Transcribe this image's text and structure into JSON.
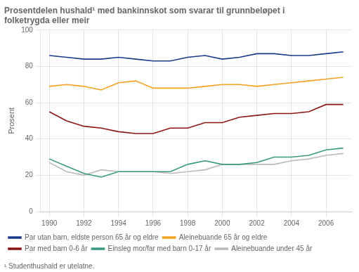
{
  "chart_data": {
    "type": "line",
    "title": [
      "Prosentdelen hushald¹ med bankinnskot som svarar til grunnbeløpet i",
      "folketrygda eller meir"
    ],
    "ylabel": "Prosent",
    "annotations": [
      "¹ Studenthushald er utelatne."
    ],
    "x": [
      1990,
      1991,
      1992,
      1993,
      1994,
      1995,
      1996,
      1997,
      1998,
      1999,
      2000,
      2001,
      2002,
      2003,
      2004,
      2005,
      2006,
      2007
    ],
    "series": [
      {
        "name": "Par utan barn, eldste person 65 år og eldre",
        "color": "#1a3a8c",
        "values": [
          86,
          85,
          84,
          84,
          85,
          84,
          83,
          83,
          85,
          86,
          84,
          85,
          87,
          87,
          86,
          86,
          87,
          88
        ]
      },
      {
        "name": "Aleinebuande 65 år og eldre",
        "color": "#f5a020",
        "values": [
          69,
          70,
          69,
          67,
          71,
          72,
          68,
          68,
          68,
          69,
          70,
          70,
          69,
          70,
          71,
          72,
          73,
          74
        ]
      },
      {
        "name": "Par med barn 0-6 år",
        "color": "#8b1515",
        "values": [
          55,
          50,
          47,
          46,
          44,
          43,
          43,
          46,
          46,
          49,
          49,
          52,
          53,
          54,
          54,
          55,
          59,
          59
        ]
      },
      {
        "name": "Einsleg mor/far med barn 0-17 år",
        "color": "#3a9980",
        "values": [
          29,
          25,
          21,
          19,
          22,
          22,
          22,
          22,
          26,
          28,
          26,
          26,
          27,
          30,
          30,
          31,
          34,
          35
        ]
      },
      {
        "name": "Aleinebuande under 45 år",
        "color": "#bbbbbb",
        "values": [
          27,
          22,
          20,
          23,
          22,
          22,
          22,
          21,
          22,
          23,
          26,
          26,
          26,
          26,
          28,
          29,
          31,
          32
        ]
      }
    ],
    "xlim": [
      1989.5,
      2007.5
    ],
    "ylim": [
      0,
      100
    ],
    "xticks": [
      1990,
      1992,
      1994,
      1996,
      1998,
      2000,
      2002,
      2004,
      2006
    ],
    "yticks": [
      0,
      20,
      40,
      60,
      80,
      100
    ],
    "grid": true,
    "legend": "bottom"
  }
}
